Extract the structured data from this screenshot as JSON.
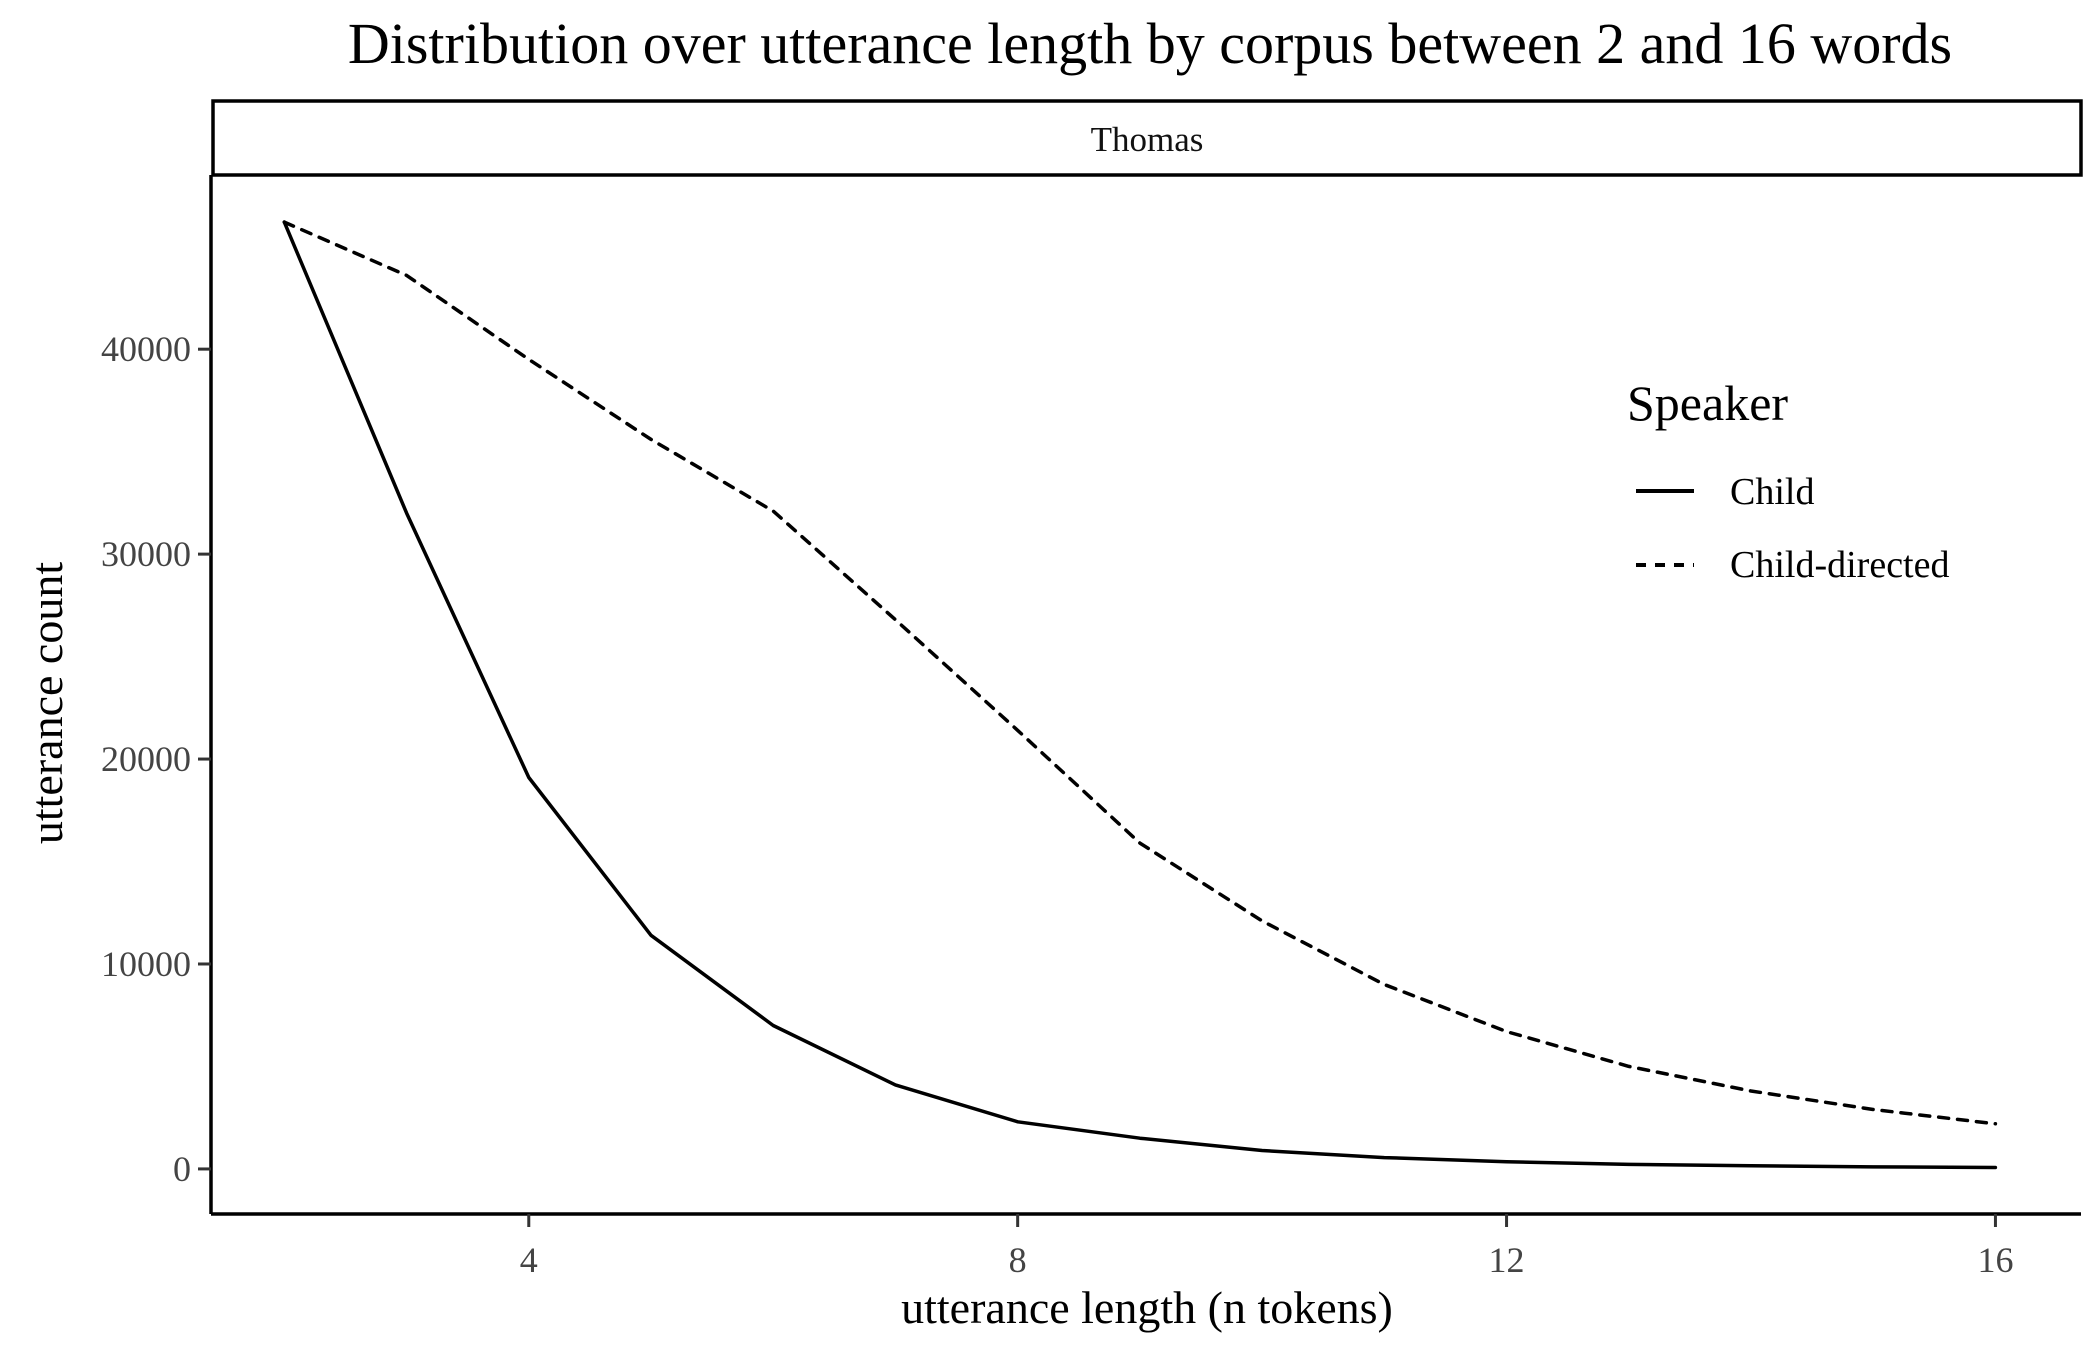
{
  "chart_data": {
    "type": "line",
    "title": "Distribution over utterance length by corpus between 2 and 16 words",
    "facet": "Thomas",
    "xlabel": "utterance length (n tokens)",
    "ylabel": "utterance count",
    "x": [
      2,
      3,
      4,
      5,
      6,
      7,
      8,
      9,
      10,
      11,
      12,
      13,
      14,
      15,
      16
    ],
    "xticks": [
      4,
      8,
      12,
      16
    ],
    "yticks": [
      0,
      10000,
      20000,
      30000,
      40000
    ],
    "xlim": [
      1.4,
      16.7
    ],
    "ylim": [
      -2200,
      48500
    ],
    "grid": false,
    "legend": {
      "title": "Speaker",
      "position": "right"
    },
    "series": [
      {
        "name": "Child",
        "line_style": "solid",
        "color": "#000000",
        "values": [
          46200,
          32000,
          19100,
          11400,
          7000,
          4100,
          2300,
          1500,
          900,
          550,
          350,
          220,
          150,
          100,
          70
        ]
      },
      {
        "name": "Child-directed",
        "line_style": "dashed",
        "color": "#000000",
        "values": [
          46200,
          43600,
          39500,
          35600,
          32100,
          26800,
          21400,
          15900,
          12100,
          9000,
          6700,
          5000,
          3800,
          2900,
          2200
        ]
      }
    ]
  }
}
